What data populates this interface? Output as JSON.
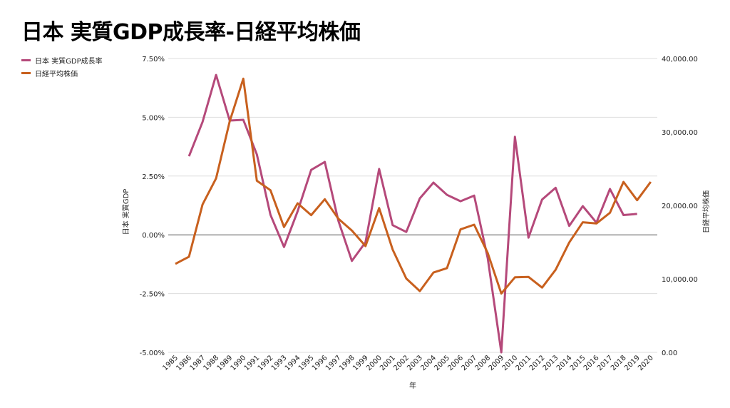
{
  "chart_data": {
    "type": "line",
    "title": "日本 実質GDP成長率-日経平均株価",
    "xlabel": "年",
    "ylabel_left": "日本 実質GDP",
    "ylabel_right": "日経平均株価",
    "legend_placement": "top-left",
    "ylim_left": [
      -5,
      7.5
    ],
    "ylim_right": [
      0,
      40000
    ],
    "left_ticks": [
      "-5.00%",
      "-2.50%",
      "0.00%",
      "2.50%",
      "5.00%",
      "7.50%"
    ],
    "left_tick_values": [
      -5,
      -2.5,
      0,
      2.5,
      5,
      7.5
    ],
    "right_ticks": [
      "0.00",
      "10,000.00",
      "20,000.00",
      "30,000.00",
      "40,000.00"
    ],
    "right_tick_values": [
      0,
      10000,
      20000,
      30000,
      40000
    ],
    "x": [
      "1985",
      "1986",
      "1987",
      "1988",
      "1989",
      "1990",
      "1991",
      "1992",
      "1993",
      "1994",
      "1995",
      "1996",
      "1997",
      "1998",
      "1999",
      "2000",
      "2001",
      "2002",
      "2003",
      "2004",
      "2005",
      "2006",
      "2007",
      "2008",
      "2009",
      "2010",
      "2011",
      "2012",
      "2013",
      "2014",
      "2015",
      "2016",
      "2017",
      "2018",
      "2019",
      "2020"
    ],
    "series": [
      {
        "name": "日本 実質GDP成長率",
        "axis": "left",
        "color": "#b5497a",
        "values": [
          null,
          3.34,
          4.8,
          6.8,
          4.86,
          4.89,
          3.42,
          0.85,
          -0.52,
          1.0,
          2.76,
          3.1,
          0.6,
          -1.11,
          -0.32,
          2.8,
          0.41,
          0.12,
          1.55,
          2.22,
          1.7,
          1.43,
          1.67,
          -1.0,
          -5.0,
          4.17,
          -0.12,
          1.5,
          2.0,
          0.38,
          1.22,
          0.52,
          1.95,
          0.84,
          0.89,
          null
        ]
      },
      {
        "name": "日経平均株価",
        "axis": "right",
        "color": "#c8601e",
        "values": [
          12050,
          13020,
          20130,
          23680,
          31440,
          37250,
          23360,
          22070,
          17060,
          20290,
          18680,
          20840,
          18190,
          16580,
          14470,
          19640,
          13990,
          10050,
          8340,
          10860,
          11470,
          16740,
          17380,
          13510,
          8010,
          10210,
          10270,
          8820,
          11240,
          14960,
          17710,
          17540,
          19000,
          23200,
          20710,
          23200
        ]
      }
    ]
  }
}
